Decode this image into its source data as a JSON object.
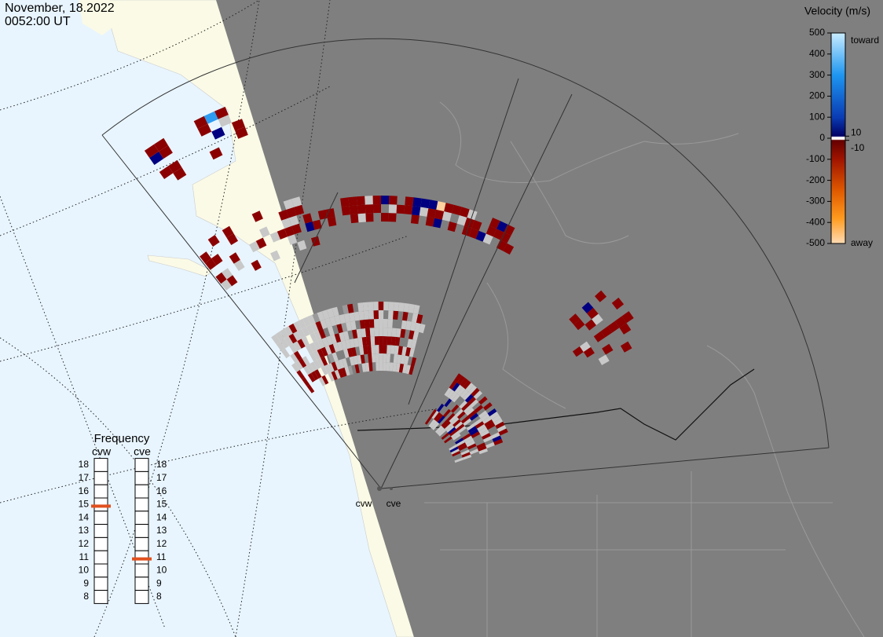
{
  "header": {
    "date": "November, 18.2022",
    "time": "0052:00 UT"
  },
  "colorbar": {
    "title": "Velocity (m/s)",
    "lim": [
      -500,
      500
    ],
    "ticks": [
      500,
      400,
      300,
      200,
      100,
      0,
      -100,
      -200,
      -300,
      -400,
      -500
    ],
    "inner_ticks": [
      10,
      -10
    ],
    "end_labels": [
      "toward",
      "away"
    ]
  },
  "frequency": {
    "title": "Frequency",
    "lim": [
      8,
      18
    ],
    "ticks": [
      18,
      17,
      16,
      15,
      14,
      13,
      12,
      11,
      10,
      9,
      8
    ],
    "marker_color": "#e0501e",
    "radars": [
      {
        "name": "cvw",
        "value": 15
      },
      {
        "name": "cve",
        "value": 11
      }
    ]
  },
  "map": {
    "radar_labels": [
      "cvw",
      "cve"
    ]
  }
}
